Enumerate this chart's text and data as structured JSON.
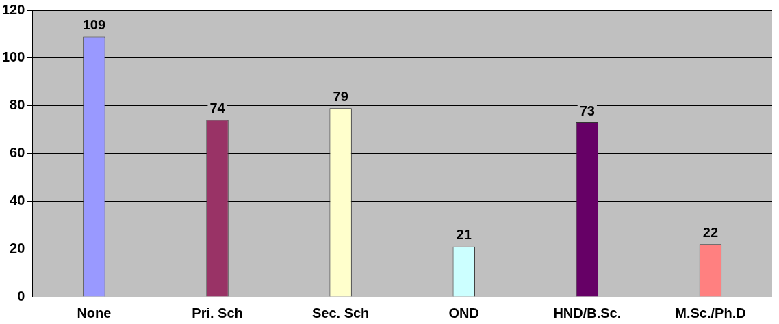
{
  "chart_data": {
    "type": "bar",
    "categories": [
      "None",
      "Pri. Sch",
      "Sec. Sch",
      "OND",
      "HND/B.Sc.",
      "M.Sc./Ph.D"
    ],
    "values": [
      109,
      74,
      79,
      21,
      73,
      22
    ],
    "colors": [
      "#9999ff",
      "#993366",
      "#ffffcc",
      "#ccffff",
      "#660066",
      "#ff8080"
    ],
    "ylim": [
      0,
      120
    ],
    "yticks": [
      0,
      20,
      40,
      60,
      80,
      100,
      120
    ],
    "grid": "y",
    "data_labels": true,
    "legend": false
  }
}
